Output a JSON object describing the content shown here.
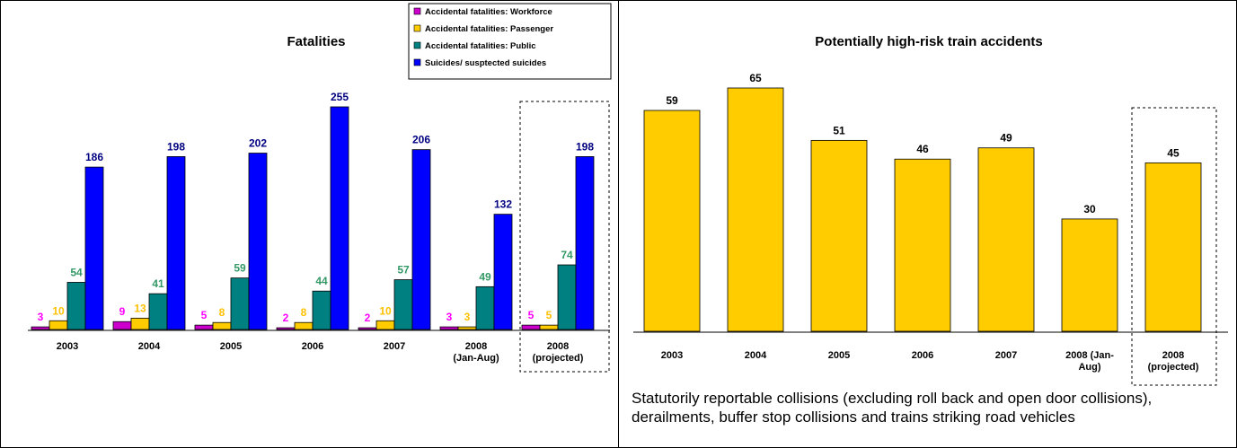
{
  "chart_data": [
    {
      "type": "bar",
      "title": "Fatalities",
      "categories": [
        "2003",
        "2004",
        "2005",
        "2006",
        "2007",
        "2008 (Jan-Aug)",
        "2008 (projected)"
      ],
      "highlighted_category": "2008 (projected)",
      "series": [
        {
          "name": "Accidental fatalities: Workforce",
          "color": "#CC00CC",
          "label_color": "#FF00FF",
          "values": [
            3,
            9,
            5,
            2,
            2,
            3,
            5
          ]
        },
        {
          "name": "Accidental fatalities: Passenger",
          "color": "#FFCC00",
          "label_color": "#FFC000",
          "values": [
            10,
            13,
            8,
            8,
            10,
            3,
            5
          ]
        },
        {
          "name": "Accidental fatalities: Public",
          "color": "#008080",
          "label_color": "#339966",
          "values": [
            54,
            41,
            59,
            44,
            57,
            49,
            74
          ]
        },
        {
          "name": "Suicides/ susptected suicides",
          "color": "#0000FF",
          "label_color": "#000080",
          "values": [
            186,
            198,
            202,
            255,
            206,
            132,
            198
          ]
        }
      ],
      "ylim": [
        0,
        255
      ],
      "grid": false,
      "legend_position": "top-right"
    },
    {
      "type": "bar",
      "title": "Potentially high-risk train accidents",
      "categories": [
        "2003",
        "2004",
        "2005",
        "2006",
        "2007",
        "2008 (Jan-Aug)",
        "2008 (projected)"
      ],
      "highlighted_category": "2008 (projected)",
      "series": [
        {
          "color": "#FFCC00",
          "values": [
            59,
            65,
            51,
            46,
            49,
            30,
            45
          ]
        }
      ],
      "ylim": [
        0,
        65
      ],
      "grid": false,
      "caption": "Statutorily reportable collisions (excluding roll back and open door collisions), derailments, buffer stop collisions and trains striking road vehicles"
    }
  ]
}
